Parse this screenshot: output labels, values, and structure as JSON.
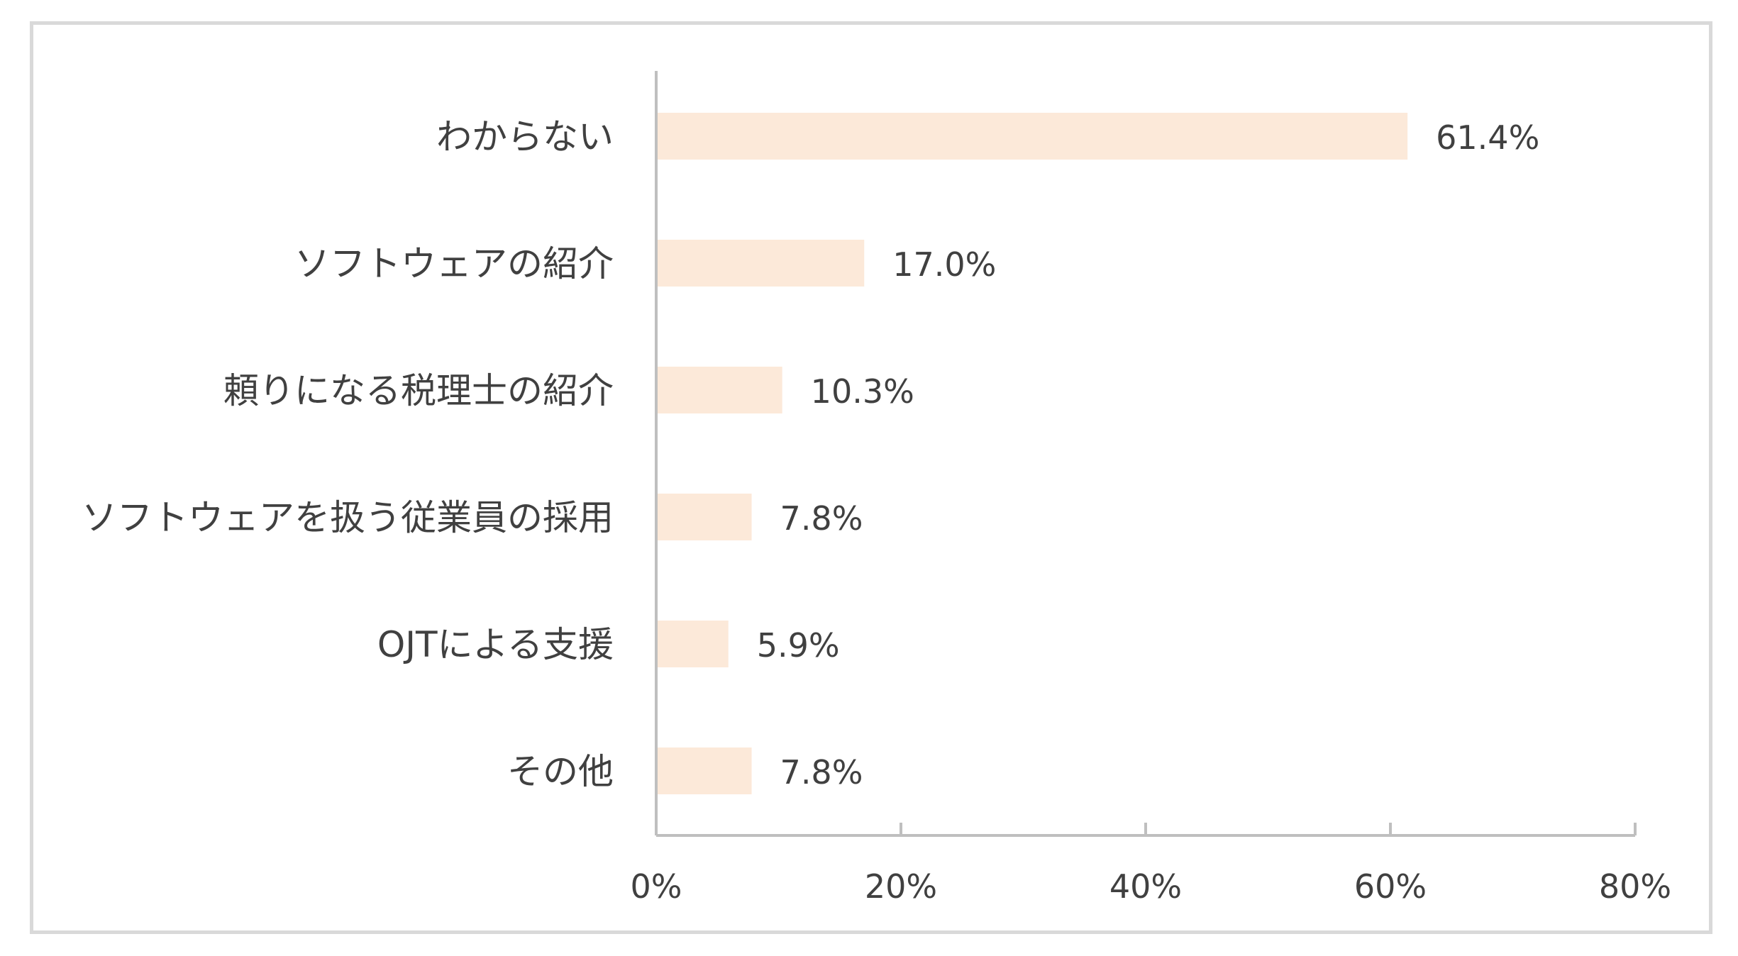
{
  "chart_data": {
    "type": "bar",
    "orientation": "horizontal",
    "categories": [
      "わからない",
      "ソフトウェアの紹介",
      "頼りになる税理士の紹介",
      "ソフトウェアを扱う従業員の採用",
      "OJTによる支援",
      "その他"
    ],
    "values": [
      61.4,
      17.0,
      10.3,
      7.8,
      5.9,
      7.8
    ],
    "value_labels": [
      "61.4%",
      "17.0%",
      "10.3%",
      "7.8%",
      "5.9%",
      "7.8%"
    ],
    "xlim": [
      0,
      80
    ],
    "xticks": [
      0,
      20,
      40,
      60,
      80
    ],
    "xtick_labels": [
      "0%",
      "20%",
      "40%",
      "60%",
      "80%"
    ],
    "grid": false,
    "legend": "none",
    "colors": {
      "bar": "#fce9d9",
      "axis": "#bfbfbf",
      "text": "#404040",
      "border": "#d9d9d9"
    }
  }
}
